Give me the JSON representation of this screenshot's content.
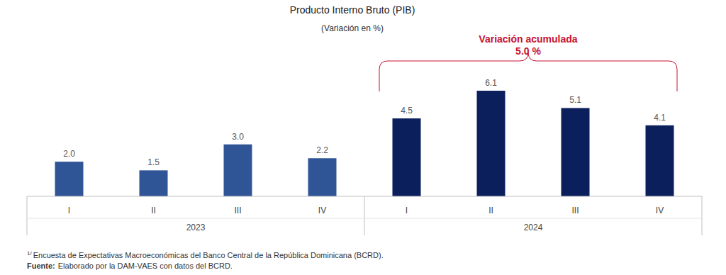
{
  "chart_data": {
    "type": "bar",
    "title": "Producto Interno Bruto (PIB)",
    "subtitle": "(Variación en %)",
    "categories": [
      "I",
      "II",
      "III",
      "IV",
      "I",
      "II",
      "III",
      "IV"
    ],
    "years": [
      "2023",
      "2023",
      "2023",
      "2023",
      "2024",
      "2024",
      "2024",
      "2024"
    ],
    "values": [
      2.0,
      1.5,
      3.0,
      2.2,
      4.5,
      6.1,
      5.1,
      4.1
    ],
    "value_labels": [
      "2.0",
      "1.5",
      "3.0",
      "2.2",
      "4.5",
      "6.1",
      "5.1",
      "4.1"
    ],
    "colors": [
      "#2f5597",
      "#2f5597",
      "#2f5597",
      "#2f5597",
      "#0b1f5c",
      "#0b1f5c",
      "#0b1f5c",
      "#0b1f5c"
    ],
    "ylim": [
      0,
      7
    ],
    "data_labels": true,
    "tick_labels": "x",
    "grid": false,
    "annotation": {
      "lines": [
        "Variación acumulada",
        "5.0 %"
      ],
      "group": "2024",
      "color": "#c8102e"
    },
    "footnote_mark": "1/",
    "footnote": "Encuesta de Expectativas Macroeconómicas del Banco Central de la República Dominicana (BCRD).",
    "source_label": "Fuente:",
    "source": "Elaborado por la DAM-VAES con datos del BCRD."
  }
}
